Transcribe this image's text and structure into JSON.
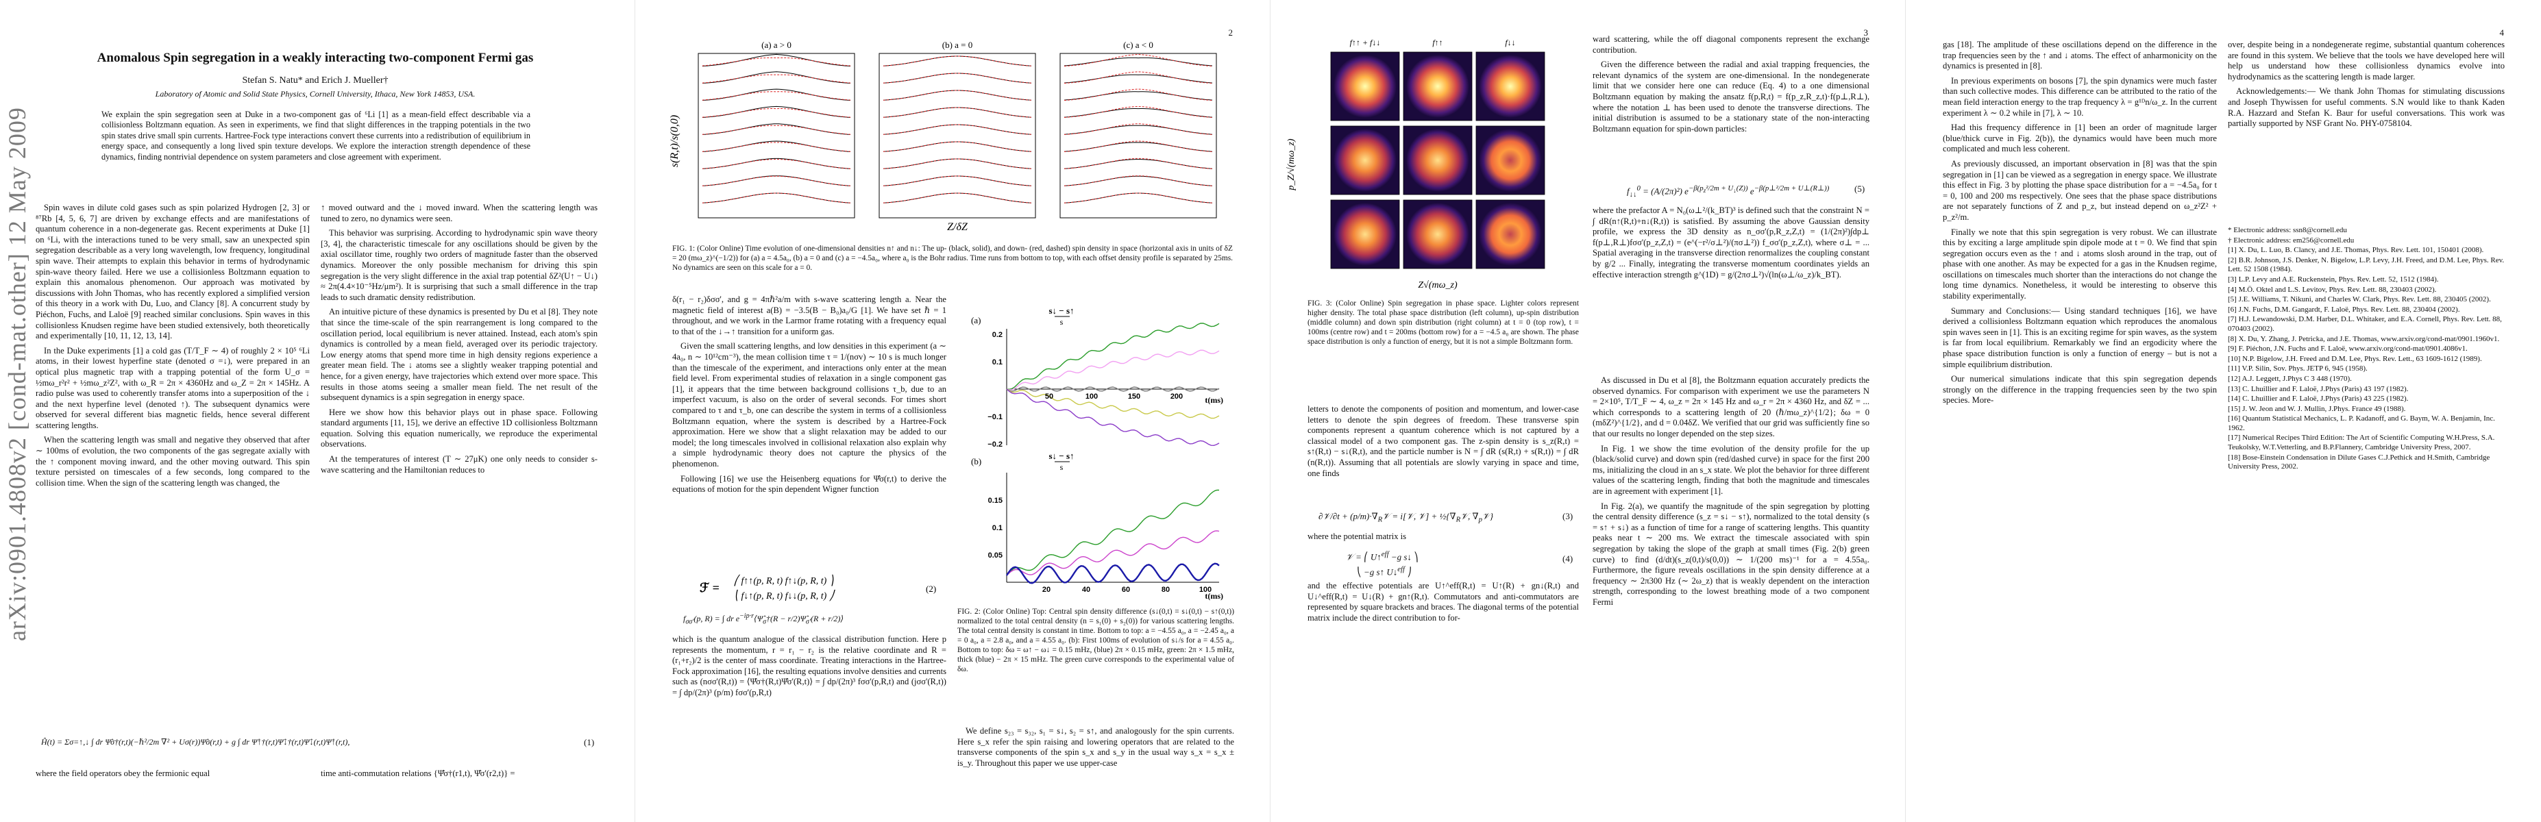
{
  "arxiv_stamp": "arXiv:0901.4808v2  [cond-mat.other]  12 May 2009",
  "page1": {
    "title": "Anomalous Spin segregation in a weakly interacting two-component Fermi gas",
    "authors": "Stefan S. Natu* and Erich J. Mueller†",
    "affiliation": "Laboratory of Atomic and Solid State Physics, Cornell University, Ithaca, New York 14853, USA.",
    "abstract": "We explain the spin segregation seen at Duke in a two-component gas of ⁶Li [1] as a mean-field effect describable via a collisionless Boltzmann equation. As seen in experiments, we find that slight differences in the trapping potentials in the two spin states drive small spin currents. Hartree-Fock type interactions convert these currents into a redistribution of equilibrium in energy space, and consequently a long lived spin texture develops. We explore the interaction strength dependence of these dynamics, finding nontrivial dependence on system parameters and close agreement with experiment.",
    "left_col": [
      "Spin waves in dilute cold gases such as spin polarized Hydrogen [2, 3] or ⁸⁷Rb [4, 5, 6, 7] are driven by exchange effects and are manifestations of quantum coherence in a non-degenerate gas. Recent experiments at Duke [1] on ⁶Li, with the interactions tuned to be very small, saw an unexpected spin segregation describable as a very long wavelength, low frequency, longitudinal spin wave. Their attempts to explain this behavior in terms of hydrodynamic spin-wave theory failed. Here we use a collisionless Boltzmann equation to explain this anomalous phenomenon. Our approach was motivated by discussions with John Thomas, who has recently explored a simplified version of this theory in a work with Du, Luo, and Clancy [8]. A concurrent study by Piéchon, Fuchs, and Laloë [9] reached similar conclusions. Spin waves in this collisionless Knudsen regime have been studied extensively, both theoretically and experimentally [10, 11, 12, 13, 14].",
      "In the Duke experiments [1] a cold gas (T/T_F ∼ 4) of roughly 2 × 10⁵ ⁶Li atoms, in their lowest hyperfine state (denoted σ =↓), were prepared in an optical plus magnetic trap with a trapping potential of the form U_σ = ½mω_r²r² + ½mω_z²Z², with ω_R = 2π × 4360Hz and ω_Z = 2π × 145Hz. A radio pulse was used to coherently transfer atoms into a superposition of the ↓ and the next hyperfine level (denoted ↑). The subsequent dynamics were observed for several different bias magnetic fields, hence several different scattering lengths.",
      "When the scattering length was small and negative they observed that after ∼ 100ms of evolution, the two components of the gas segregate axially with the ↑ component moving inward, and the other moving outward. This spin texture persisted on timescales of a few seconds, long compared to the collision time. When the sign of the scattering length was changed, the"
    ],
    "right_col": [
      "↑ moved outward and the ↓ moved inward. When the scattering length was tuned to zero, no dynamics were seen.",
      "This behavior was surprising. According to hydrodynamic spin wave theory [3, 4], the characteristic timescale for any oscillations should be given by the axial oscillator time, roughly two orders of magnitude faster than the observed dynamics. Moreover the only possible mechanism for driving this spin segregation is the very slight difference in the axial trap potential δZ²(U↑ − U↓) ≈ 2π(4.4×10⁻⁵Hz/μm²). It is surprising that such a small difference in the trap leads to such dramatic density redistribution.",
      "An intuitive picture of these dynamics is presented by Du et al [8]. They note that since the time-scale of the spin rearrangement is long compared to the oscillation period, local equilibrium is never attained. Instead, each atom's spin dynamics is controlled by a mean field, averaged over its periodic trajectory. Low energy atoms that spend more time in high density regions experience a greater mean field. The ↓ atoms see a slightly weaker trapping potential and hence, for a given energy, have trajectories which extend over more space. This results in those atoms seeing a smaller mean field. The net result of the subsequent dynamics is a spin segregation in energy space.",
      "Here we show how this behavior plays out in phase space. Following standard arguments [11, 15], we derive an effective 1D collisionless Boltzmann equation. Solving this equation numerically, we reproduce the experimental observations.",
      "At the temperatures of interest (T ∼ 27μK) one only needs to consider s-wave scattering and the Hamiltonian reduces to"
    ],
    "eq1": "Ĥ(t) = Σσ=↑,↓ ∫ dr Ψ̂σ†(r,t)(−ℏ²/2m ∇² + Uσ(r))Ψ̂σ(r,t) + g ∫ dr Ψ̂↑†(r,t)Ψ̂↓†(r,t)Ψ̂↓(r,t)Ψ̂↑(r,t),",
    "eq1_num": "(1)",
    "bottom_left": "where the field operators obey the fermionic equal",
    "bottom_right": "time anti-commutation relations {Ψ̂σ†(r1,t), Ψ̂σ'(r2,t)} ="
  },
  "page2": {
    "page_number": "2",
    "panel_titles": [
      "(a) a > 0",
      "(b) a = 0",
      "(c) a < 0"
    ],
    "ylabel": "s(R,t)/s(0,0)",
    "xlabel": "Z/δZ",
    "fig1_caption": "FIG. 1: (Color Online) Time evolution of one-dimensional densities n↑ and n↓: The up- (black, solid), and down- (red, dashed) spin density in space (horizontal axis in units of δZ = 20 (mω_z)^(−1/2)) for (a) a = 4.5a₀, (b) a = 0 and (c) a = −4.5a₀, where a₀ is the Bohr radius. Time runs from bottom to top, with each offset density profile is separated by 25ms. No dynamics are seen on this scale for a = 0.",
    "left_col": [
      "δ(r₁ − r₂)δσσ', and g = 4πℏ²a/m with s-wave scattering length a. Near the magnetic field of interest a(B) = −3.5(B − B₀)a₀/G [1]. We have set ℏ = 1 throughout, and we work in the Larmor frame rotating with a frequency equal to that of the ↓→↑ transition for a uniform gas.",
      "Given the small scattering lengths, and low densities in this experiment (a ∼ 4a₀, n ∼ 10¹²cm⁻³), the mean collision time τ = 1/(nσv) ∼ 10 s is much longer than the timescale of the experiment, and interactions only enter at the mean field level. From experimental studies of relaxation in a single component gas [1], it appears that the time between background collisions τ_b, due to an imperfect vacuum, is also on the order of several seconds. For times short compared to τ and τ_b, one can describe the system in terms of a collisionless Boltzmann equation, where the system is described by a Hartree-Fock approximation. Here we show that a slight relaxation may be added to our model; the long timescales involved in collisional relaxation also explain why a simple hydrodynamic theory does not capture the physics of the phenomenon.",
      "Following [16] we use the Heisenberg equations for Ψ̂σ(r,t) to derive the equations of motion for the spin dependent Wigner function"
    ],
    "eq2_num": "(2)",
    "after_eq2": "which is the quantum analogue of the classical distribution function. Here p represents the momentum, r = r₁ − r₂ is the relative coordinate and R = (r₁+r₂)/2 is the center of mass coordinate. Treating interactions in the Hartree-Fock approximation [16], the resulting equations involve densities and currents such as (nσσ'(R,t)) = ⟨Ψ̂σ†(R,t)Ψ̂σ'(R,t)⟩ = ∫ dp/(2π)³ fσσ'(p,R,t) and (jσσ'(R,t)) = ∫ dp/(2π)³ (p/m) fσσ'(p,R,t)",
    "fig2_labels": {
      "panel_a": "(a)",
      "panel_b": "(b)",
      "eq_a": "s↓ − s↑",
      "eq_b": "s↓ − s↑",
      "time_a": "t(ms)",
      "time_b": "t(ms)"
    },
    "fig2_caption": "FIG. 2: (Color Online) Top: Central spin density difference (s↓(0,t) = s↓(0,t) − s↑(0,t)) normalized to the total central density (n = s₁(0) + s₂(0)) for various scattering lengths. The total central density is constant in time. Bottom to top: a = −4.55 a₀, a = −2.45 a₀, a = 0 a₀, a = 2.8 a₀, and a = 4.55 a₀. (b): First 100ms of evolution of s↓/s for a = 4.55 a₀. Bottom to top: δω = ω↑ − ω↓ = 0.15 mHz, (blue) 2π × 0.15 mHz, green: 2π × 1.5 mHz, thick (blue) − 2π × 15 mHz. The green curve corresponds to the experimental value of δω.",
    "right_col": [
      "We define s₂₃ = s₃₂, s₁ = s↓, s₂ = s↑, and analogously for the spin currents. Here s_x refer the spin raising and lowering operators that are related to the transverse components of the spin s_x and s_y in the usual way s_x = s_x ± is_y. Throughout this paper we use upper-case"
    ]
  },
  "page3": {
    "page_number": "3",
    "left_col": [
      "ward scattering, while the off diagonal components represent the exchange contribution.",
      "Given the difference between the radial and axial trapping frequencies, the relevant dynamics of the system are one-dimensional. In the nondegenerate limit that we consider here one can reduce (Eq. 4) to a one dimensional Boltzmann equation by making the ansatz f(p,R,t) = f(p_z,R_z,t)·f(p⊥,R⊥), where the notation ⊥ has been used to denote the transverse directions. The initial distribution is assumed to be a stationary state of the non-interacting Boltzmann equation for spin-down particles:"
    ],
    "eq5_num": "(5)",
    "after_eq5": "where the prefactor A = N₀(ω⊥²/(k_BT)³ is defined such that the constraint N = ∫ dR(n↑(R,t)+n↓(R,t)) is satisfied. By assuming the above Gaussian density profile, we express the 3D density as n_σσ'(p,R_z,Z,t) = (1/(2π)²)∫dp⊥ f(p⊥,R⊥)fσσ'(p_z,Z,t) = (e^(−r²/σ⊥²)/(πσ⊥²)) f_σσ'(p_z,Z,t), where σ⊥ = ... Spatial averaging in the transverse direction renormalizes the coupling constant by g/2 ... Finally, integrating the transverse momentum coordinates yields an effective interaction strength g^(1D) = g/(2πσ⊥²)√(ln(ω⊥/ω_z)/k_BT).",
    "left_col_b": [
      "letters to denote the components of position and momentum, and lower-case letters to denote the spin degrees of freedom. These transverse spin components represent a quantum coherence which is not captured by a classical model of a two component gas. The z-spin density is s_z(R,t) = s↑(R,t) − s↓(R,t), and the particle number is N = ∫ dR (s(R,t) + s(R,t)) = ∫ dR (n(R,t)). Assuming that all potentials are slowly varying in space and time, one finds"
    ],
    "eq3_num": "(3)",
    "eq4_intro": "where the potential matrix is",
    "eq4_num": "(4)",
    "after_eq4": "and the effective potentials are U↑^eff(R,t) = U↑(R) + gn↓(R,t) and U↓^eff(R,t) = U↓(R) + gn↑(R,t). Commutators and anti-commutators are represented by square brackets and braces. The diagonal terms of the potential matrix include the direct contribution to for-",
    "fig3_col_titles": [
      "f↑↑ + f↓↓",
      "f↑↑",
      "f↓↓"
    ],
    "fig3_ylabel": "p_Z/√(mω_z)",
    "fig3_xlabel": "Z√(mω_z)",
    "fig3_caption": "FIG. 3: (Color Online) Spin segregation in phase space. Lighter colors represent higher density. The total phase space distribution (left column), up-spin distribution (middle column) and down spin distribution (right column) at t = 0 (top row), t = 100ms (centre row) and t = 200ms (bottom row) for a = −4.5 a₀ are shown. The phase space distribution is only a function of energy, but it is not a simple Boltzmann form.",
    "right_col": [
      "As discussed in Du et al [8], the Boltzmann equation accurately predicts the observed dynamics. For comparison with experiment we use the parameters N = 2×10⁵, T/T_F ∼ 4, ω_z = 2π × 145 Hz and ω_r = 2π × 4360 Hz, and δZ = ... which corresponds to a scattering length of 20 (ℏ/mω_z)^{1/2}; δω = 0 (mδZ²)^{1/2}, and d = 0.04δZ. We verified that our grid was sufficiently fine so that our results no longer depended on the step sizes.",
      "In Fig. 1 we show the time evolution of the density profile for the up (black/solid curve) and down spin (red/dashed curve) in space for the first 200 ms, initializing the cloud in an s_x state. We plot the behavior for three different values of the scattering length, finding that both the magnitude and timescales are in agreement with experiment [1].",
      "In Fig. 2(a), we quantify the magnitude of the spin segregation by plotting the central density difference (s_z = s↓ − s↑), normalized to the total density (s = s↑ + s↓) as a function of time for a range of scattering lengths. This quantity peaks near t ∼ 200 ms. We extract the timescale associated with spin segregation by taking the slope of the graph at small times (Fig. 2(b) green curve) to find (d/dt)(s_z(0,t)/s(0,0)) ∼ 1/(200 ms)⁻¹ for a = 4.55a₀. Furthermore, the figure reveals oscillations in the spin density difference at a frequency ∼ 2π300 Hz (∼ 2ω_z) that is weakly dependent on the interaction strength, corresponding to the lowest breathing mode of a two component Fermi"
    ]
  },
  "page4": {
    "page_number": "4",
    "left_col": [
      "gas [18]. The amplitude of these oscillations depend on the difference in the trap frequencies seen by the ↑ and ↓ atoms. The effect of anharmonicity on the dynamics is presented in [8].",
      "In previous experiments on bosons [7], the spin dynamics were much faster than such collective modes. This difference can be attributed to the ratio of the mean field interaction energy to the trap frequency λ = g¹ᴰn/ω_z. In the current experiment λ ∼ 0.2 while in [7], λ ∼ 10.",
      "Had this frequency difference in [1] been an order of magnitude larger (blue/thick curve in Fig. 2(b)), the dynamics would have been much more complicated and much less coherent.",
      "As previously discussed, an important observation in [8] was that the spin segregation in [1] can be viewed as a segregation in energy space. We illustrate this effect in Fig. 3 by plotting the phase space distribution for a = −4.5a₀ for t = 0, 100 and 200 ms respectively. One sees that the phase space distributions are not separately functions of Z and p_z, but instead depend on ω_z²Z² + p_z²/m.",
      "Finally we note that this spin segregation is very robust. We can illustrate this by exciting a large amplitude spin dipole mode at t = 0. We find that spin segregation occurs even as the ↑ and ↓ atoms slosh around in the trap, out of phase with one another. As may be expected for a gas in the Knudsen regime, oscillations on timescales much shorter than the interactions do not change the long time dynamics. Nonetheless, it would be interesting to observe this stability experimentally.",
      "Summary and Conclusions:— Using standard techniques [16], we have derived a collisionless Boltzmann equation which reproduces the anomalous spin waves seen in [1]. This is an exciting regime for spin waves, as the system is far from local equilibrium. Remarkably we find an ergodicity where the phase space distribution function is only a function of energy – but is not a simple equilibrium distribution.",
      "Our numerical simulations indicate that this spin segregation depends strongly on the difference in the trapping frequencies seen by the two spin species. More-"
    ],
    "right_col_text": [
      "over, despite being in a nondegenerate regime, substantial quantum coherences are found in this system. We believe that the tools we have developed here will help us understand how these collisionless dynamics evolve into hydrodynamics as the scattering length is made larger.",
      "Acknowledgements:— We thank John Thomas for stimulating discussions and Joseph Thywissen for useful comments. S.N would like to thank Kaden R.A. Hazzard and Stefan K. Baur for useful conversations. This work was partially supported by NSF Grant No. PHY-0758104."
    ],
    "references": [
      "* Electronic address: ssn8@cornell.edu",
      "† Electronic address: em256@cornell.edu",
      "[1] X. Du, L. Luo, B. Clancy, and J.E. Thomas, Phys. Rev. Lett. 101, 150401 (2008).",
      "[2] B.R. Johnson, J.S. Denker, N. Bigelow, L.P. Levy, J.H. Freed, and D.M. Lee, Phys. Rev. Lett. 52 1508 (1984).",
      "[3] L.P. Levy and A.E. Ruckenstein, Phys. Rev. Lett. 52, 1512 (1984).",
      "[4] M.Ö. Oktel and L.S. Levitov, Phys. Rev. Lett. 88, 230403 (2002).",
      "[5] J.E. Williams, T. Nikuni, and Charles W. Clark, Phys. Rev. Lett. 88, 230405 (2002).",
      "[6] J.N. Fuchs, D.M. Gangardt, F. Laloë, Phys. Rev. Lett. 88, 230404 (2002).",
      "[7] H.J. Lewandowski, D.M. Harber, D.L. Whitaker, and E.A. Cornell, Phys. Rev. Lett. 88, 070403 (2002).",
      "[8] X. Du, Y. Zhang, J. Petricka, and J.E. Thomas, www.arxiv.org/cond-mat/0901.1960v1.",
      "[9] F. Piéchon, J.N. Fuchs and F. Laloë, www.arxiv.org/cond-mat/0901.4086v1.",
      "[10] N.P. Bigelow, J.H. Freed and D.M. Lee, Phys. Rev. Lett., 63 1609-1612 (1989).",
      "[11] V.P. Silin, Sov. Phys. JETP 6, 945 (1958).",
      "[12] A.J. Leggett, J.Phys C 3 448 (1970).",
      "[13] C. Lhuillier and F. Laloë, J.Phys (Paris) 43 197 (1982).",
      "[14] C. Lhuillier and F. Laloë, J.Phys (Paris) 43 225 (1982).",
      "[15] J. W. Jeon and W. J. Mullin, J.Phys. France 49 (1988).",
      "[16] Quantum Statistical Mechanics, L. P. Kadanoff, and G. Baym, W. A. Benjamin, Inc. 1962.",
      "[17] Numerical Recipes Third Edition: The Art of Scientific Computing W.H.Press, S.A. Teukolsky, W.T.Vetterling, and B.P.Flannery, Cambridge University Press, 2007.",
      "[18] Bose-Einstein Condensation in Dilute Gases C.J.Pethick and H.Smith, Cambridge University Press, 2002."
    ]
  }
}
